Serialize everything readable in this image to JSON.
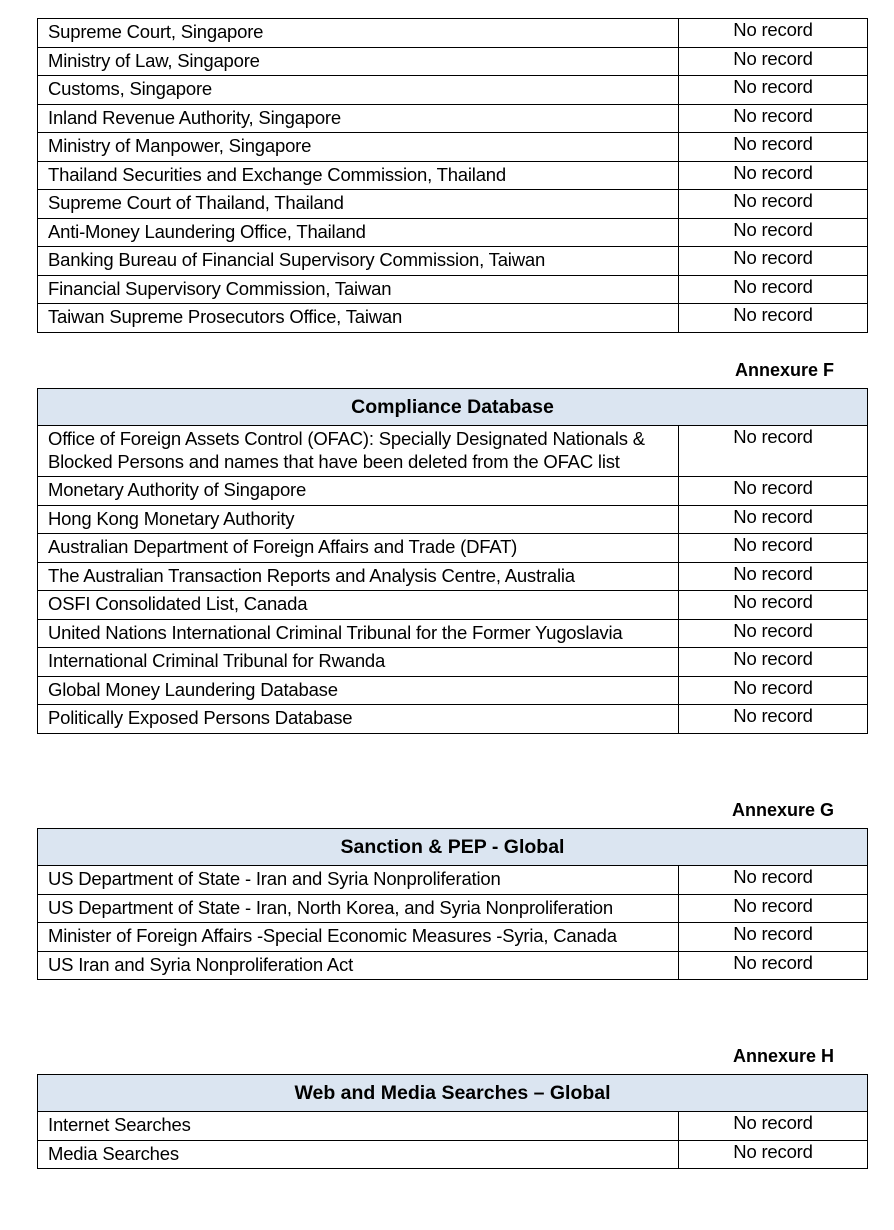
{
  "sections": [
    {
      "annexure": "",
      "title": "",
      "rows": [
        {
          "name": "Supreme Court, Singapore",
          "value": "No record"
        },
        {
          "name": "Ministry of Law, Singapore",
          "value": "No record"
        },
        {
          "name": "Customs, Singapore",
          "value": "No record"
        },
        {
          "name": "Inland Revenue Authority, Singapore",
          "value": "No record"
        },
        {
          "name": "Ministry of Manpower, Singapore",
          "value": "No record"
        },
        {
          "name": "Thailand Securities and Exchange Commission, Thailand",
          "value": "No record"
        },
        {
          "name": "Supreme Court of Thailand, Thailand",
          "value": "No record"
        },
        {
          "name": "Anti-Money Laundering Office, Thailand",
          "value": "No record"
        },
        {
          "name": "Banking Bureau of Financial Supervisory Commission, Taiwan",
          "value": "No record"
        },
        {
          "name": "Financial Supervisory Commission, Taiwan",
          "value": "No record"
        },
        {
          "name": "Taiwan Supreme Prosecutors Office, Taiwan",
          "value": "No record"
        }
      ]
    },
    {
      "annexure": "Annexure F",
      "title": "Compliance Database",
      "rows": [
        {
          "name": "Office of Foreign Assets Control (OFAC): Specially Designated Nationals & Blocked Persons and names that have been deleted from the OFAC list",
          "value": "No record"
        },
        {
          "name": "Monetary Authority of Singapore",
          "value": "No record"
        },
        {
          "name": "Hong Kong Monetary Authority",
          "value": "No record"
        },
        {
          "name": "Australian Department of Foreign Affairs and Trade (DFAT)",
          "value": "No record"
        },
        {
          "name": "The Australian Transaction Reports and Analysis Centre, Australia",
          "value": "No record"
        },
        {
          "name": "OSFI Consolidated List, Canada",
          "value": "No record"
        },
        {
          "name": "United Nations International Criminal Tribunal for the Former Yugoslavia",
          "value": "No record"
        },
        {
          "name": "International Criminal Tribunal for Rwanda",
          "value": "No record"
        },
        {
          "name": "Global Money Laundering Database",
          "value": "No record"
        },
        {
          "name": "Politically Exposed Persons Database",
          "value": "No record"
        }
      ]
    },
    {
      "annexure": "Annexure G",
      "title": "Sanction & PEP - Global",
      "rows": [
        {
          "name": "US Department of State - Iran and Syria Nonproliferation",
          "value": "No record"
        },
        {
          "name": "US Department of State - Iran, North Korea, and Syria Nonproliferation",
          "value": "No record"
        },
        {
          "name": "Minister of Foreign Affairs -Special Economic Measures -Syria, Canada",
          "value": "No record"
        },
        {
          "name": "US Iran and Syria Nonproliferation Act",
          "value": "No record"
        }
      ]
    },
    {
      "annexure": "Annexure H",
      "title": "Web and Media Searches – Global",
      "rows": [
        {
          "name": "Internet Searches",
          "value": "No record"
        },
        {
          "name": "Media Searches",
          "value": "No record"
        }
      ]
    }
  ],
  "colors": {
    "header_fill": "#dbe5f1",
    "border": "#000000"
  }
}
